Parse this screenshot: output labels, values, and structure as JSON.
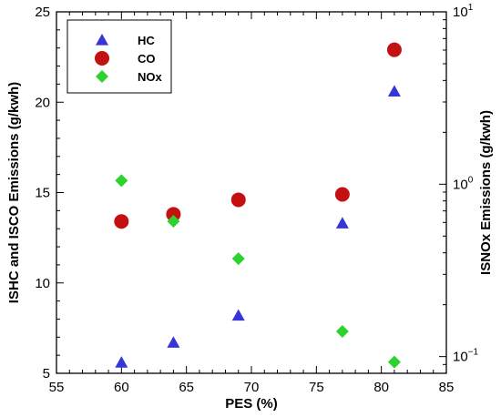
{
  "chart_data": {
    "type": "scatter",
    "title": "",
    "xlabel": "PES (%)",
    "ylabel_left": "ISHC and ISCO Emissions (g/kwh)",
    "ylabel_right": "ISNOx Emissions (g/kwh)",
    "xlim": [
      55,
      85
    ],
    "ylim_left": [
      5,
      25
    ],
    "ylim_right": [
      0.08,
      10
    ],
    "right_axis_scale": "log",
    "x_ticks": [
      "55",
      "60",
      "65",
      "70",
      "75",
      "80",
      "85"
    ],
    "y_left_ticks": [
      "5",
      "10",
      "15",
      "20",
      "25"
    ],
    "y_right_ticks": [
      {
        "base": "10",
        "exp": "−1"
      },
      {
        "base": "10",
        "exp": "0"
      },
      {
        "base": "10",
        "exp": "1"
      }
    ],
    "legend_position": "top-left",
    "series": [
      {
        "name": "HC",
        "axis": "left",
        "marker": "triangle",
        "color": "#3636d8",
        "x": [
          60,
          64,
          69,
          77,
          81
        ],
        "y": [
          5.6,
          6.7,
          8.2,
          13.3,
          20.6
        ]
      },
      {
        "name": "CO",
        "axis": "left",
        "marker": "circle",
        "color": "#c41010",
        "x": [
          60,
          64,
          69,
          77,
          81
        ],
        "y": [
          13.4,
          13.8,
          14.6,
          14.9,
          22.9
        ]
      },
      {
        "name": "NOx",
        "axis": "right",
        "marker": "diamond",
        "color": "#2ed22e",
        "x": [
          60,
          64,
          69,
          77,
          81
        ],
        "y": [
          1.05,
          0.61,
          0.37,
          0.14,
          0.093
        ]
      }
    ]
  }
}
